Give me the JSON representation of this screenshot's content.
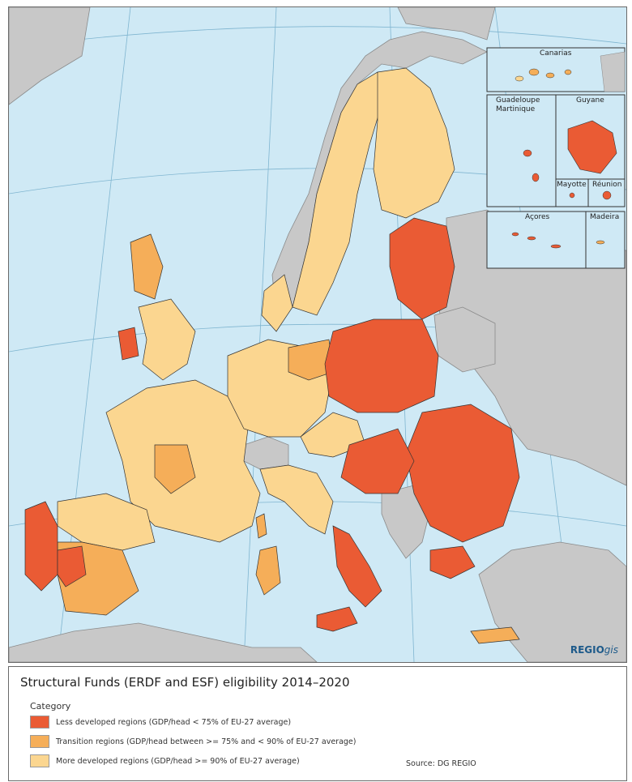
{
  "map": {
    "colors": {
      "sea": "#cfe9f5",
      "non_eu": "#c8c8c8",
      "less_developed": "#ea5b34",
      "transition": "#f5ae59",
      "more_developed": "#fbd690",
      "border": "#333333"
    },
    "insets": {
      "canarias": "Canarias",
      "guadeloupe": "Guadeloupe",
      "martinique": "Martinique",
      "guyane": "Guyane",
      "mayotte": "Mayotte",
      "reunion": "Réunion",
      "acores": "Açores",
      "madeira": "Madeira"
    },
    "brand": {
      "main": "REGIO",
      "suffix": "gis"
    }
  },
  "legend": {
    "title": "Structural Funds (ERDF and ESF) eligibility 2014–2020",
    "category_label": "Category",
    "items": [
      {
        "label": "Less developed regions (GDP/head < 75% of EU-27 average)",
        "color": "#ea5b34"
      },
      {
        "label": "Transition regions (GDP/head between >= 75% and < 90% of EU-27 average)",
        "color": "#f5ae59"
      },
      {
        "label": "More developed regions (GDP/head >= 90% of EU-27 average)",
        "color": "#fbd690"
      }
    ],
    "source": "Source: DG REGIO"
  }
}
